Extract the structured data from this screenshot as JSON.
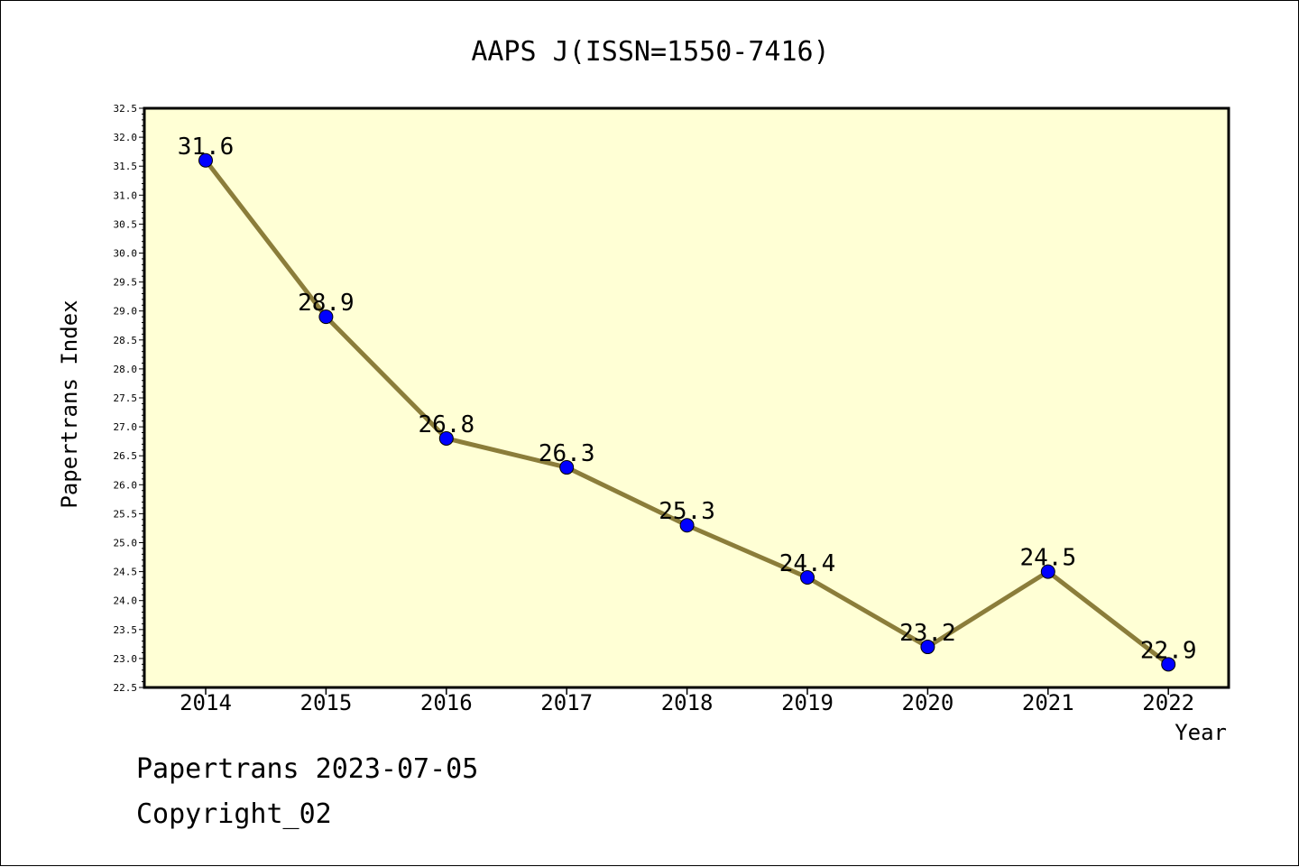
{
  "chart_data": {
    "type": "line",
    "title": "AAPS J(ISSN=1550-7416)",
    "xlabel": "Year",
    "ylabel": "Papertrans Index",
    "categories": [
      "2014",
      "2015",
      "2016",
      "2017",
      "2018",
      "2019",
      "2020",
      "2021",
      "2022"
    ],
    "series": [
      {
        "values": [
          31.6,
          28.9,
          26.8,
          26.3,
          25.3,
          24.4,
          23.2,
          24.5,
          22.9
        ],
        "labels": [
          "31.6",
          "28.9",
          "26.8",
          "26.3",
          "25.3",
          "24.4",
          "23.2",
          "24.5",
          "22.9"
        ],
        "line_color": "#8B7D3A",
        "marker_color": "#0000FF"
      }
    ],
    "ylim": [
      22.5,
      32.5
    ],
    "y_major_step": 0.5,
    "yticks": [
      "22.5",
      "23.0",
      "23.5",
      "24.0",
      "24.5",
      "25.0",
      "25.5",
      "26.0",
      "26.5",
      "27.0",
      "27.5",
      "28.0",
      "28.5",
      "29.0",
      "29.5",
      "30.0",
      "30.5",
      "31.0",
      "31.5",
      "32.0",
      "32.5"
    ],
    "plot_background": "#FFFFD5",
    "grid": false,
    "legend": "none"
  },
  "footer": {
    "line1": "Papertrans 2023-07-05",
    "line2": "Copyright_02"
  }
}
